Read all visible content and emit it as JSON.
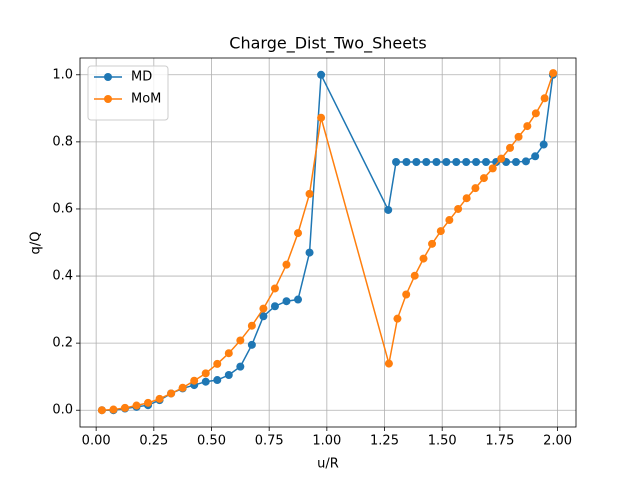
{
  "chart_data": {
    "type": "line",
    "title": "Charge_Dist_Two_Sheets",
    "xlabel": "u/R",
    "ylabel": "q/Q",
    "xlim": [
      -0.07,
      2.08
    ],
    "ylim": [
      -0.05,
      1.05
    ],
    "xticks": [
      {
        "value": 0,
        "label": "0.00"
      },
      {
        "value": 0.25,
        "label": "0.25"
      },
      {
        "value": 0.5,
        "label": "0.50"
      },
      {
        "value": 0.75,
        "label": "0.75"
      },
      {
        "value": 1,
        "label": "1.00"
      },
      {
        "value": 1.25,
        "label": "1.25"
      },
      {
        "value": 1.5,
        "label": "1.50"
      },
      {
        "value": 1.75,
        "label": "1.75"
      },
      {
        "value": 2,
        "label": "2.00"
      }
    ],
    "yticks": [
      {
        "value": 0,
        "label": "0.0"
      },
      {
        "value": 0.2,
        "label": "0.2"
      },
      {
        "value": 0.4,
        "label": "0.4"
      },
      {
        "value": 0.6,
        "label": "0.6"
      },
      {
        "value": 0.8,
        "label": "0.8"
      },
      {
        "value": 1,
        "label": "1.0"
      }
    ],
    "grid": true,
    "legend": "upper-left",
    "series": [
      {
        "name": "MD",
        "color": "#1f77b4",
        "x": [
          0.025,
          0.075,
          0.125,
          0.175,
          0.225,
          0.275,
          0.325,
          0.375,
          0.425,
          0.475,
          0.525,
          0.575,
          0.625,
          0.675,
          0.725,
          0.775,
          0.825,
          0.875,
          0.925,
          0.975,
          1.266,
          1.3,
          1.345,
          1.388,
          1.431,
          1.475,
          1.518,
          1.561,
          1.604,
          1.647,
          1.69,
          1.734,
          1.777,
          1.82,
          1.863,
          1.903,
          1.94,
          1.98
        ],
        "values": [
          0.0,
          0.0,
          0.005,
          0.01,
          0.015,
          0.03,
          0.05,
          0.065,
          0.075,
          0.085,
          0.09,
          0.105,
          0.13,
          0.195,
          0.28,
          0.31,
          0.325,
          0.33,
          0.47,
          1.0,
          0.597,
          0.74,
          0.74,
          0.74,
          0.74,
          0.74,
          0.74,
          0.74,
          0.74,
          0.74,
          0.74,
          0.74,
          0.74,
          0.74,
          0.742,
          0.757,
          0.792,
          1.0
        ]
      },
      {
        "name": "MoM",
        "color": "#ff7f0e",
        "x": [
          0.025,
          0.075,
          0.125,
          0.175,
          0.225,
          0.275,
          0.325,
          0.375,
          0.425,
          0.475,
          0.525,
          0.575,
          0.625,
          0.675,
          0.725,
          0.775,
          0.825,
          0.875,
          0.925,
          0.975,
          1.269,
          1.306,
          1.344,
          1.381,
          1.419,
          1.456,
          1.494,
          1.531,
          1.569,
          1.606,
          1.644,
          1.681,
          1.719,
          1.756,
          1.794,
          1.831,
          1.869,
          1.906,
          1.944,
          1.981
        ],
        "values": [
          0.0,
          0.002,
          0.007,
          0.014,
          0.022,
          0.034,
          0.05,
          0.067,
          0.088,
          0.11,
          0.138,
          0.17,
          0.208,
          0.252,
          0.303,
          0.363,
          0.434,
          0.528,
          0.645,
          0.872,
          0.139,
          0.273,
          0.345,
          0.401,
          0.452,
          0.496,
          0.534,
          0.567,
          0.6,
          0.632,
          0.662,
          0.692,
          0.721,
          0.75,
          0.782,
          0.815,
          0.847,
          0.885,
          0.93,
          1.005
        ]
      }
    ]
  }
}
